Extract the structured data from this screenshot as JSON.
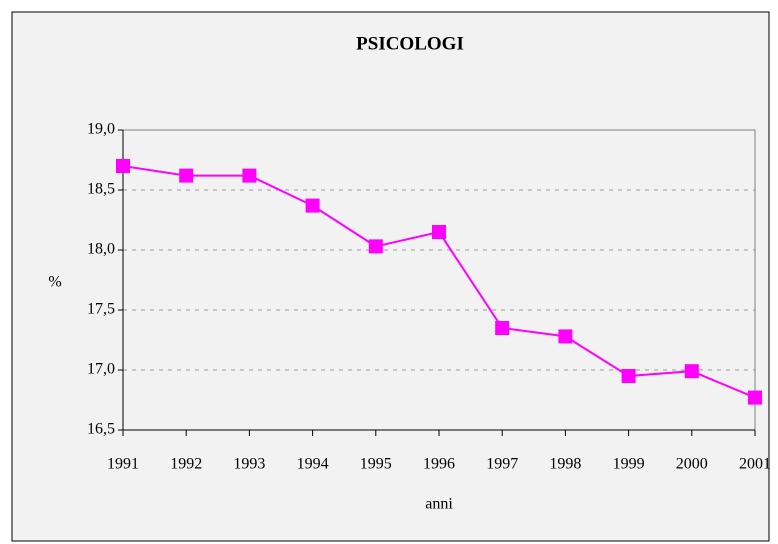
{
  "chart_data": {
    "type": "line",
    "title": "PSICOLOGI",
    "xlabel": "anni",
    "ylabel": "%",
    "x": [
      1991,
      1992,
      1993,
      1994,
      1995,
      1996,
      1997,
      1998,
      1999,
      2000,
      2001
    ],
    "series": [
      {
        "name": "PSICOLOGI",
        "color": "#ff00ff",
        "values": [
          18.7,
          18.62,
          18.62,
          18.37,
          18.03,
          18.15,
          17.35,
          17.28,
          16.95,
          16.99,
          16.77
        ]
      }
    ],
    "xlim": [
      1991,
      2001
    ],
    "xticks": [
      1991,
      1992,
      1993,
      1994,
      1995,
      1996,
      1997,
      1998,
      1999,
      2000,
      2001
    ],
    "ylim": [
      16.5,
      19
    ],
    "yticks": [
      {
        "value": 16.5,
        "label": "16,5"
      },
      {
        "value": 17,
        "label": "17,0"
      },
      {
        "value": 17.5,
        "label": "17,5"
      },
      {
        "value": 18,
        "label": "18,0"
      },
      {
        "value": 18.5,
        "label": "18,5"
      },
      {
        "value": 19,
        "label": "19,0"
      }
    ],
    "grid": true
  }
}
